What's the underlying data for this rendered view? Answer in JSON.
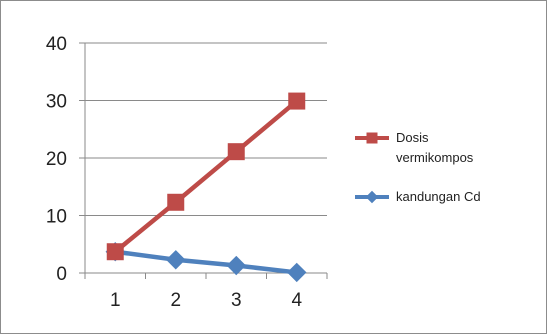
{
  "chart_data": {
    "type": "line",
    "x": [
      "1",
      "2",
      "3",
      "4"
    ],
    "ylim": [
      0,
      40
    ],
    "yticks": [
      "0",
      "10",
      "20",
      "30",
      "40"
    ],
    "grid": true,
    "legend_position": "right",
    "series": [
      {
        "name": "Dosis vermikompos",
        "name_lines": [
          "Dosis",
          "vermikompos"
        ],
        "values": [
          3.7,
          12.3,
          21.1,
          29.9
        ],
        "color": "#be4b48",
        "marker": "square"
      },
      {
        "name": "kandungan Cd",
        "name_lines": [
          "kandungan Cd"
        ],
        "values": [
          3.7,
          2.3,
          1.3,
          0.1
        ],
        "color": "#4f81bd",
        "marker": "diamond"
      }
    ]
  }
}
